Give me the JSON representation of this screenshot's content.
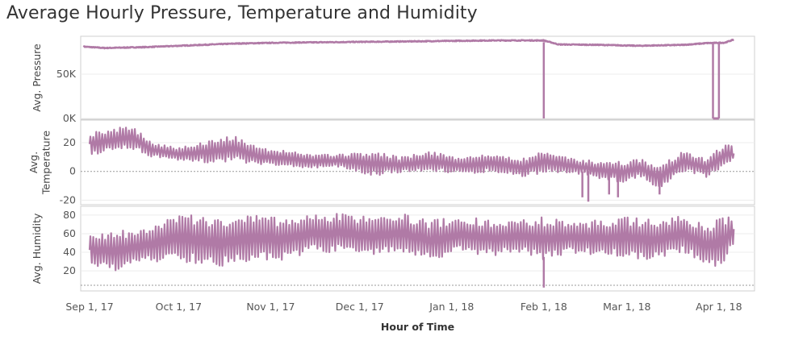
{
  "title": "Average Hourly Pressure, Temperature and Humidity",
  "colors": {
    "series": "#b07aa6",
    "grid": "#ececec",
    "frame": "#cfcfcf",
    "zero": "#999999"
  },
  "chart_data": [
    {
      "type": "line",
      "ylabel": "Avg. Pressure",
      "ylim": [
        0,
        90000
      ],
      "yticks": [
        {
          "value": 0,
          "label": "0K"
        },
        {
          "value": 50000,
          "label": "50K"
        }
      ],
      "series": [
        {
          "values_by_date": [
            [
              "2017-08-30",
              81000
            ],
            [
              "2017-09-06",
              79500
            ],
            [
              "2017-09-20",
              80500
            ],
            [
              "2017-10-05",
              82500
            ],
            [
              "2017-10-20",
              84500
            ],
            [
              "2017-11-05",
              85500
            ],
            [
              "2017-11-20",
              86000
            ],
            [
              "2017-12-05",
              86500
            ],
            [
              "2017-12-20",
              87000
            ],
            [
              "2018-01-01",
              87500
            ],
            [
              "2018-01-15",
              88000
            ],
            [
              "2018-02-01",
              88000
            ],
            [
              "2018-02-06",
              83500
            ],
            [
              "2018-02-20",
              83000
            ],
            [
              "2018-03-05",
              82000
            ],
            [
              "2018-03-20",
              83000
            ],
            [
              "2018-03-28",
              85000
            ],
            [
              "2018-04-03",
              85500
            ],
            [
              "2018-04-06",
              89000
            ]
          ]
        }
      ],
      "drops": [
        {
          "date": "2018-02-01",
          "value": 0
        },
        {
          "date": "2018-03-30",
          "value": 0,
          "until": "2018-04-01"
        }
      ]
    },
    {
      "type": "line",
      "ylabel": "Avg. Temperature",
      "ylim": [
        -22,
        34
      ],
      "yticks": [
        {
          "value": -20,
          "label": "-20"
        },
        {
          "value": 0,
          "label": "0"
        },
        {
          "value": 20,
          "label": "20"
        }
      ],
      "series": [
        {
          "envelope_by_date": [
            [
              "2017-09-01",
              11,
              27
            ],
            [
              "2017-09-10",
              14,
              30
            ],
            [
              "2017-09-15",
              16,
              32
            ],
            [
              "2017-09-22",
              10,
              20
            ],
            [
              "2017-10-01",
              7,
              17
            ],
            [
              "2017-10-10",
              6,
              21
            ],
            [
              "2017-10-20",
              7,
              25
            ],
            [
              "2017-10-28",
              4,
              16
            ],
            [
              "2017-11-05",
              4,
              15
            ],
            [
              "2017-11-15",
              2,
              12
            ],
            [
              "2017-11-25",
              3,
              12
            ],
            [
              "2017-12-05",
              -3,
              14
            ],
            [
              "2017-12-15",
              -1,
              10
            ],
            [
              "2017-12-25",
              0,
              14
            ],
            [
              "2018-01-05",
              -2,
              10
            ],
            [
              "2018-01-15",
              0,
              12
            ],
            [
              "2018-01-25",
              -4,
              9
            ],
            [
              "2018-02-01",
              -1,
              15
            ],
            [
              "2018-02-10",
              -1,
              9
            ],
            [
              "2018-02-20",
              -5,
              7
            ],
            [
              "2018-02-28",
              -8,
              7
            ],
            [
              "2018-03-05",
              -4,
              9
            ],
            [
              "2018-03-12",
              -12,
              4
            ],
            [
              "2018-03-20",
              0,
              14
            ],
            [
              "2018-03-28",
              -4,
              9
            ],
            [
              "2018-04-03",
              3,
              20
            ],
            [
              "2018-04-06",
              8,
              17
            ]
          ]
        }
      ],
      "spikes": [
        {
          "date": "2018-02-14",
          "value": -18
        },
        {
          "date": "2018-02-16",
          "value": -21
        },
        {
          "date": "2018-02-23",
          "value": -16
        },
        {
          "date": "2018-02-26",
          "value": -18
        },
        {
          "date": "2018-03-12",
          "value": -16
        }
      ]
    },
    {
      "type": "line",
      "ylabel": "Avg. Humidity",
      "ylim": [
        1,
        86
      ],
      "yticks": [
        {
          "value": 20,
          "label": "20"
        },
        {
          "value": 40,
          "label": "40"
        },
        {
          "value": 60,
          "label": "60"
        },
        {
          "value": 80,
          "label": "80"
        }
      ],
      "series": [
        {
          "envelope_by_date": [
            [
              "2017-09-01",
              25,
              60
            ],
            [
              "2017-09-10",
              20,
              63
            ],
            [
              "2017-09-20",
              30,
              65
            ],
            [
              "2017-10-01",
              30,
              82
            ],
            [
              "2017-10-15",
              25,
              75
            ],
            [
              "2017-10-25",
              30,
              80
            ],
            [
              "2017-11-05",
              30,
              78
            ],
            [
              "2017-11-15",
              40,
              80
            ],
            [
              "2017-11-25",
              40,
              82
            ],
            [
              "2017-12-05",
              35,
              78
            ],
            [
              "2017-12-15",
              40,
              82
            ],
            [
              "2017-12-25",
              30,
              75
            ],
            [
              "2018-01-05",
              40,
              78
            ],
            [
              "2018-01-15",
              35,
              75
            ],
            [
              "2018-01-25",
              40,
              75
            ],
            [
              "2018-02-01",
              30,
              78
            ],
            [
              "2018-02-10",
              40,
              72
            ],
            [
              "2018-02-20",
              35,
              75
            ],
            [
              "2018-03-01",
              35,
              78
            ],
            [
              "2018-03-10",
              30,
              75
            ],
            [
              "2018-03-20",
              40,
              80
            ],
            [
              "2018-03-28",
              25,
              70
            ],
            [
              "2018-04-03",
              25,
              80
            ],
            [
              "2018-04-06",
              50,
              80
            ]
          ]
        }
      ],
      "spikes": [
        {
          "date": "2018-02-01",
          "value": 2
        }
      ]
    }
  ],
  "xaxis": {
    "title": "Hour of Time",
    "range": [
      "2017-08-29",
      "2018-04-13"
    ],
    "ticks": [
      {
        "date": "2017-09-01",
        "label": "Sep 1, 17"
      },
      {
        "date": "2017-10-01",
        "label": "Oct 1, 17"
      },
      {
        "date": "2017-11-01",
        "label": "Nov 1, 17"
      },
      {
        "date": "2017-12-01",
        "label": "Dec 1, 17"
      },
      {
        "date": "2018-01-01",
        "label": "Jan 1, 18"
      },
      {
        "date": "2018-02-01",
        "label": "Feb 1, 18"
      },
      {
        "date": "2018-03-01",
        "label": "Mar 1, 18"
      },
      {
        "date": "2018-04-01",
        "label": "Apr 1, 18"
      }
    ]
  }
}
